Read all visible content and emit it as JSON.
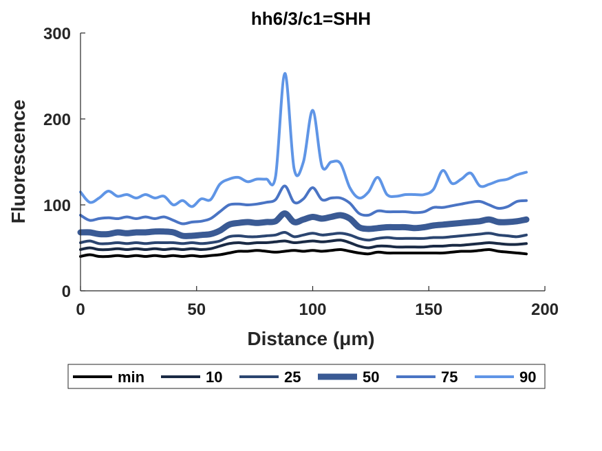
{
  "chart_data": {
    "type": "line",
    "title": "hh6/3/c1=SHH",
    "xlabel": "Distance (μm)",
    "ylabel": "Fluorescence",
    "xlim": [
      0,
      200
    ],
    "ylim": [
      0,
      300
    ],
    "xticks": [
      0,
      50,
      100,
      150,
      200
    ],
    "yticks": [
      0,
      100,
      200,
      300
    ],
    "grid": false,
    "legend_position": "bottom",
    "x": [
      0,
      4,
      8,
      12,
      16,
      20,
      24,
      28,
      32,
      36,
      40,
      44,
      48,
      52,
      56,
      60,
      64,
      68,
      72,
      76,
      80,
      84,
      88,
      92,
      96,
      100,
      104,
      108,
      112,
      116,
      120,
      124,
      128,
      132,
      136,
      140,
      144,
      148,
      152,
      156,
      160,
      164,
      168,
      172,
      176,
      180,
      184,
      188,
      192
    ],
    "series": [
      {
        "name": "min",
        "color": "#000000",
        "width": 4,
        "values": [
          40,
          42,
          40,
          40,
          41,
          40,
          41,
          40,
          41,
          40,
          41,
          40,
          41,
          40,
          41,
          42,
          44,
          46,
          46,
          47,
          46,
          45,
          46,
          47,
          46,
          47,
          46,
          47,
          48,
          46,
          44,
          43,
          45,
          44,
          44,
          44,
          44,
          44,
          44,
          44,
          45,
          46,
          46,
          47,
          48,
          46,
          45,
          44,
          43
        ]
      },
      {
        "name": "10",
        "color": "#1a2a44",
        "width": 4,
        "values": [
          48,
          50,
          48,
          48,
          49,
          48,
          49,
          48,
          49,
          48,
          49,
          48,
          49,
          48,
          49,
          52,
          55,
          56,
          55,
          56,
          56,
          57,
          58,
          56,
          57,
          58,
          57,
          58,
          59,
          56,
          52,
          50,
          52,
          52,
          51,
          51,
          51,
          51,
          52,
          52,
          53,
          53,
          54,
          55,
          56,
          55,
          54,
          54,
          55
        ]
      },
      {
        "name": "25",
        "color": "#2b4570",
        "width": 4,
        "values": [
          56,
          58,
          55,
          55,
          56,
          55,
          56,
          55,
          56,
          56,
          56,
          55,
          56,
          55,
          56,
          58,
          63,
          64,
          63,
          63,
          64,
          65,
          68,
          63,
          65,
          67,
          65,
          66,
          67,
          65,
          61,
          59,
          61,
          62,
          61,
          61,
          61,
          61,
          62,
          62,
          63,
          64,
          65,
          66,
          67,
          65,
          64,
          63,
          65
        ]
      },
      {
        "name": "50",
        "color": "#3a5a94",
        "width": 9,
        "values": [
          68,
          68,
          66,
          66,
          68,
          67,
          68,
          68,
          69,
          69,
          68,
          64,
          64,
          65,
          66,
          70,
          77,
          79,
          80,
          79,
          80,
          81,
          90,
          80,
          83,
          86,
          84,
          86,
          88,
          84,
          74,
          72,
          73,
          74,
          74,
          74,
          73,
          74,
          76,
          77,
          78,
          79,
          80,
          81,
          83,
          80,
          80,
          81,
          83
        ]
      },
      {
        "name": "75",
        "color": "#4a74c4",
        "width": 4,
        "values": [
          88,
          82,
          84,
          85,
          84,
          86,
          84,
          86,
          84,
          86,
          82,
          78,
          80,
          81,
          84,
          92,
          100,
          101,
          100,
          101,
          103,
          106,
          122,
          103,
          107,
          120,
          106,
          108,
          108,
          102,
          90,
          88,
          93,
          92,
          92,
          92,
          91,
          92,
          97,
          97,
          99,
          101,
          103,
          104,
          100,
          96,
          98,
          104,
          105
        ]
      },
      {
        "name": "90",
        "color": "#5f95e6",
        "width": 4,
        "values": [
          115,
          103,
          108,
          116,
          110,
          112,
          108,
          112,
          108,
          110,
          100,
          105,
          98,
          107,
          106,
          124,
          130,
          132,
          127,
          130,
          130,
          133,
          253,
          142,
          150,
          210,
          145,
          150,
          148,
          120,
          108,
          115,
          132,
          112,
          110,
          112,
          112,
          112,
          118,
          140,
          125,
          130,
          137,
          122,
          124,
          128,
          130,
          135,
          138
        ]
      }
    ]
  }
}
